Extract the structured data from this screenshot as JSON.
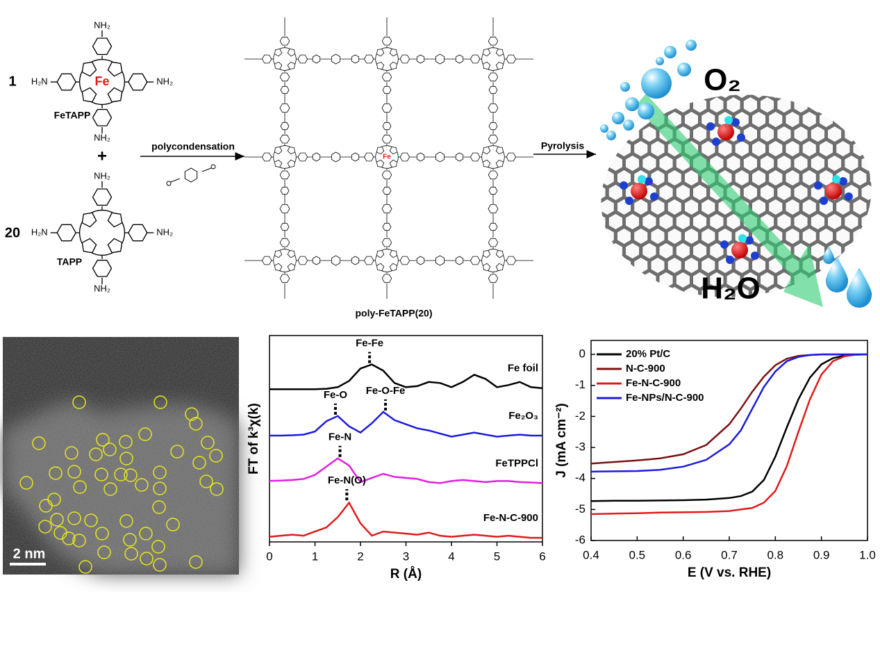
{
  "scheme": {
    "monomer1": {
      "count": 1,
      "name": "FeTAPP",
      "metal": "Fe",
      "amine": "NH₂",
      "amine_left": "H₂N"
    },
    "plus": "+",
    "monomer2": {
      "count": 20,
      "name": "TAPP",
      "amine": "NH₂",
      "amine_left": "H₂N"
    },
    "reaction": "polycondensation",
    "product": "poly-FeTAPP(20)",
    "product_metal": "Fe",
    "step2": "Pyrolysis",
    "reactant_gas": "O₂",
    "product_gas": "H₂O"
  },
  "micrograph": {
    "scale_bar": "2 nm"
  },
  "chart_data": [
    {
      "type": "line",
      "xlabel": "R (Å)",
      "ylabel": "FT of k³χ(k)",
      "xlim": [
        0,
        6
      ],
      "xticks": [
        0,
        1,
        2,
        3,
        4,
        5,
        6
      ],
      "ylim": [
        0,
        10
      ],
      "x": [
        0,
        0.25,
        0.5,
        0.75,
        1,
        1.25,
        1.5,
        1.75,
        2,
        2.25,
        2.5,
        2.75,
        3,
        3.25,
        3.5,
        3.75,
        4,
        4.25,
        4.5,
        4.75,
        5,
        5.25,
        5.5,
        5.75,
        6
      ],
      "series": [
        {
          "name": "Fe foil",
          "color": "#000000",
          "values": [
            7.4,
            7.4,
            7.4,
            7.4,
            7.4,
            7.42,
            7.5,
            7.8,
            8.4,
            8.6,
            8.3,
            7.7,
            7.5,
            7.55,
            7.75,
            7.7,
            7.5,
            7.75,
            8.1,
            7.9,
            7.5,
            7.6,
            7.75,
            7.5,
            7.45
          ]
        },
        {
          "name": "Fe₂O₃",
          "color": "#1a1adc",
          "values": [
            5.15,
            5.15,
            5.17,
            5.2,
            5.35,
            5.85,
            6.1,
            5.6,
            5.3,
            5.75,
            6.3,
            5.9,
            5.7,
            5.5,
            5.4,
            5.25,
            5.1,
            5.2,
            5.3,
            5.2,
            5.1,
            5.15,
            5.2,
            5.15,
            5.15
          ]
        },
        {
          "name": "FeTPPCl",
          "color": "#e01ee0",
          "values": [
            2.96,
            2.97,
            3.0,
            3.05,
            3.25,
            3.65,
            4.05,
            3.7,
            2.9,
            3.1,
            3.3,
            3.15,
            3.1,
            3.05,
            2.9,
            2.85,
            2.95,
            3.0,
            2.95,
            2.9,
            2.95,
            2.95,
            2.9,
            2.88,
            2.85
          ]
        },
        {
          "name": "Fe-N-C-900",
          "color": "#e01a1a",
          "values": [
            0.25,
            0.3,
            0.35,
            0.3,
            0.5,
            0.7,
            1.2,
            1.9,
            0.9,
            0.3,
            0.5,
            0.45,
            0.4,
            0.35,
            0.45,
            0.3,
            0.25,
            0.3,
            0.35,
            0.3,
            0.25,
            0.3,
            0.25,
            0.2,
            0.2
          ]
        }
      ],
      "annotations": [
        {
          "text": "Fe-Fe",
          "x": 2.2,
          "y": 8.6
        },
        {
          "text": "Fe-O",
          "x": 1.45,
          "y": 6.1
        },
        {
          "text": "Fe-O-Fe",
          "x": 2.55,
          "y": 6.3
        },
        {
          "text": "Fe-N",
          "x": 1.55,
          "y": 4.05
        },
        {
          "text": "Fe-N(O)",
          "x": 1.7,
          "y": 1.95
        }
      ]
    },
    {
      "type": "line",
      "xlabel": "E (V vs. RHE)",
      "ylabel": "J (mA cm⁻²)",
      "xlim": [
        0.4,
        1.0
      ],
      "xticks": [
        0.4,
        0.5,
        0.6,
        0.7,
        0.8,
        0.9,
        {
          "value": 1,
          "label": "1.0"
        }
      ],
      "ylim": [
        -6,
        0.45
      ],
      "yticks": [
        0,
        -1,
        -2,
        -3,
        -4,
        -5,
        -6
      ],
      "legend": "upper-left",
      "x": [
        0.4,
        0.45,
        0.5,
        0.55,
        0.6,
        0.65,
        0.7,
        0.725,
        0.75,
        0.775,
        0.8,
        0.825,
        0.85,
        0.875,
        0.9,
        0.925,
        0.95,
        0.975,
        1.0
      ],
      "series": [
        {
          "name": "20% Pt/C",
          "color": "#000000",
          "values": [
            -4.73,
            -4.72,
            -4.72,
            -4.71,
            -4.7,
            -4.68,
            -4.63,
            -4.57,
            -4.42,
            -4.05,
            -3.3,
            -2.35,
            -1.45,
            -0.75,
            -0.32,
            -0.12,
            -0.04,
            -0.01,
            0
          ]
        },
        {
          "name": "N-C-900",
          "color": "#7b1010",
          "values": [
            -3.52,
            -3.47,
            -3.42,
            -3.35,
            -3.22,
            -2.92,
            -2.25,
            -1.75,
            -1.2,
            -0.72,
            -0.35,
            -0.14,
            -0.05,
            -0.02,
            0,
            0,
            0,
            0,
            0
          ]
        },
        {
          "name": "Fe-N-C-900",
          "color": "#e01a1a",
          "values": [
            -5.15,
            -5.13,
            -5.12,
            -5.1,
            -5.09,
            -5.08,
            -5.05,
            -5.0,
            -4.95,
            -4.78,
            -4.4,
            -3.6,
            -2.5,
            -1.45,
            -0.65,
            -0.22,
            -0.06,
            -0.01,
            0
          ]
        },
        {
          "name": "Fe-NPs/N-C-900",
          "color": "#1a1adc",
          "values": [
            -3.78,
            -3.77,
            -3.76,
            -3.72,
            -3.62,
            -3.4,
            -2.9,
            -2.45,
            -1.75,
            -1.05,
            -0.55,
            -0.22,
            -0.08,
            -0.02,
            0,
            0,
            0,
            0,
            0
          ]
        }
      ]
    }
  ]
}
